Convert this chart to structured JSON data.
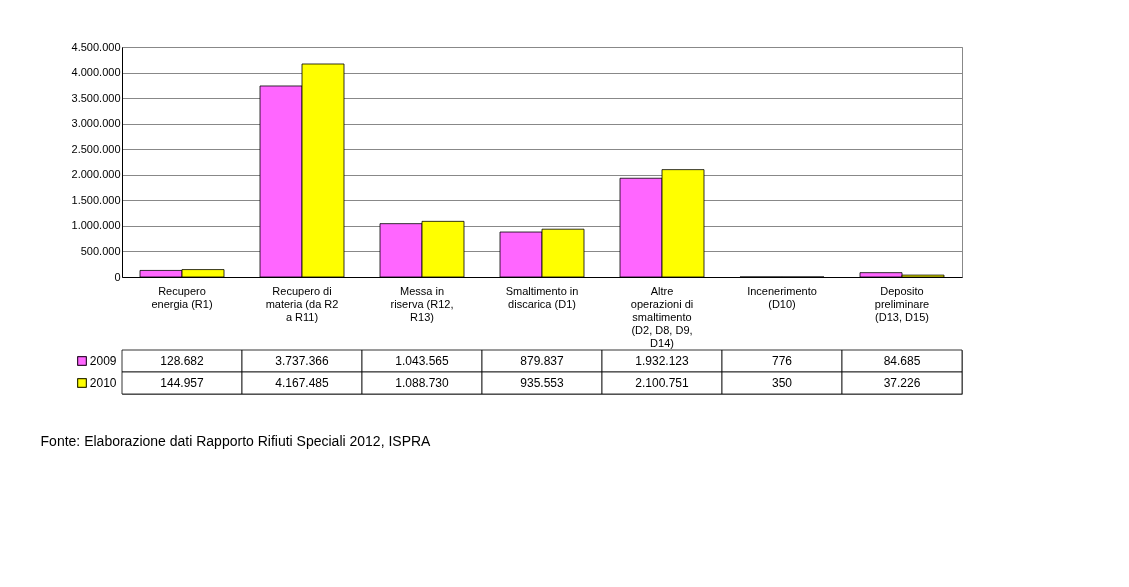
{
  "chart_data": {
    "type": "bar",
    "categories": [
      "Recupero energia (R1)",
      "Recupero di materia (da R2 a R11)",
      "Messa in riserva (R12, R13)",
      "Smaltimento in discarica (D1)",
      "Altre operazioni di smaltimento (D2, D8, D9, D14)",
      "Incenerimento (D10)",
      "Deposito preliminare (D13, D15)"
    ],
    "series": [
      {
        "name": "2009",
        "color": "#ff66ff",
        "values": [
          128682,
          3737366,
          1043565,
          879837,
          1932123,
          776,
          84685
        ],
        "value_labels": [
          "128.682",
          "3.737.366",
          "1.043.565",
          "879.837",
          "1.932.123",
          "776",
          "84.685"
        ]
      },
      {
        "name": "2010",
        "color": "#ffff00",
        "values": [
          144957,
          4167485,
          1088730,
          935553,
          2100751,
          350,
          37226
        ],
        "value_labels": [
          "144.957",
          "4.167.485",
          "1.088.730",
          "935.553",
          "2.100.751",
          "350",
          "37.226"
        ]
      }
    ],
    "ylim": [
      0,
      4500000
    ],
    "yticks": [
      0,
      {
        "value": 500000,
        "label": "500.000"
      },
      {
        "value": 1000000,
        "label": "1.000.000"
      },
      {
        "value": 1500000,
        "label": "1.500.000"
      },
      {
        "value": 2000000,
        "label": "2.000.000"
      },
      {
        "value": 2500000,
        "label": "2.500.000"
      },
      {
        "value": 3000000,
        "label": "3.000.000"
      },
      {
        "value": 3500000,
        "label": "3.500.000"
      },
      {
        "value": 4000000,
        "label": "4.000.000"
      },
      {
        "value": 4500000,
        "label": "4.500.000"
      }
    ],
    "grid": "y",
    "legend": "bottom",
    "annotations": [
      "Fonte: Elaborazione dati Rapporto Rifiuti Speciali 2012, ISPRA"
    ]
  }
}
